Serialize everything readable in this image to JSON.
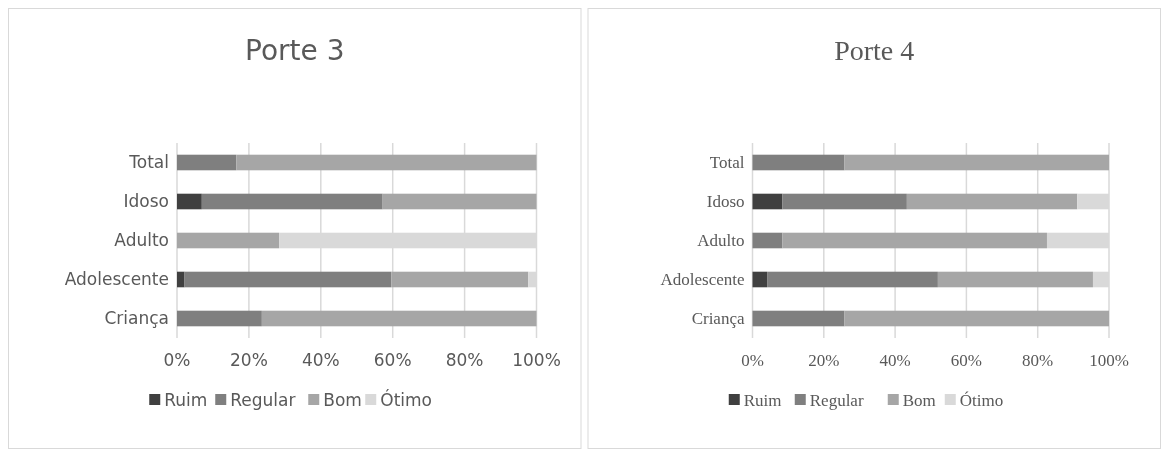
{
  "chart_data": [
    {
      "type": "bar",
      "title": "Porte 3",
      "orientation": "horizontal",
      "stacked": true,
      "categories": [
        "Total",
        "Idoso",
        "Adulto",
        "Adolescente",
        "Criança"
      ],
      "series": [
        {
          "name": "Ruim",
          "color": "#404040",
          "values": [
            0,
            6.9,
            0,
            2.1,
            0
          ]
        },
        {
          "name": "Regular",
          "color": "#7f7f7f",
          "values": [
            16.5,
            50.3,
            0,
            57.5,
            23.6
          ]
        },
        {
          "name": "Bom",
          "color": "#a6a6a6",
          "values": [
            83.5,
            42.8,
            28.4,
            38.1,
            76.4
          ]
        },
        {
          "name": "Ótimo",
          "color": "#d9d9d9",
          "values": [
            0,
            0,
            71.6,
            2.3,
            0
          ]
        }
      ],
      "xlim": [
        0,
        100
      ],
      "xticks": [
        {
          "value": 0,
          "label": "0%"
        },
        {
          "value": 20,
          "label": "20%"
        },
        {
          "value": 40,
          "label": "40%"
        },
        {
          "value": 60,
          "label": "60%"
        },
        {
          "value": 80,
          "label": "80%"
        },
        {
          "value": 100,
          "label": "100%"
        }
      ],
      "grid": "x",
      "legend": "bottom"
    },
    {
      "type": "bar",
      "title": "Porte 4",
      "orientation": "horizontal",
      "stacked": true,
      "categories": [
        "Total",
        "Idoso",
        "Adulto",
        "Adolescente",
        "Criança"
      ],
      "series": [
        {
          "name": "Ruim",
          "color": "#404040",
          "values": [
            0,
            8.4,
            0,
            4.1,
            0
          ]
        },
        {
          "name": "Regular",
          "color": "#7f7f7f",
          "values": [
            25.8,
            34.9,
            8.4,
            47.9,
            25.8
          ]
        },
        {
          "name": "Bom",
          "color": "#a6a6a6",
          "values": [
            74.2,
            47.8,
            74.2,
            43.5,
            74.2
          ]
        },
        {
          "name": "Ótimo",
          "color": "#d9d9d9",
          "values": [
            0,
            8.9,
            17.4,
            4.5,
            0
          ]
        }
      ],
      "xlim": [
        0,
        100
      ],
      "xticks": [
        {
          "value": 0,
          "label": "0%"
        },
        {
          "value": 20,
          "label": "20%"
        },
        {
          "value": 40,
          "label": "40%"
        },
        {
          "value": 60,
          "label": "60%"
        },
        {
          "value": 80,
          "label": "80%"
        },
        {
          "value": 100,
          "label": "100%"
        }
      ],
      "grid": "x",
      "legend": "bottom"
    }
  ]
}
